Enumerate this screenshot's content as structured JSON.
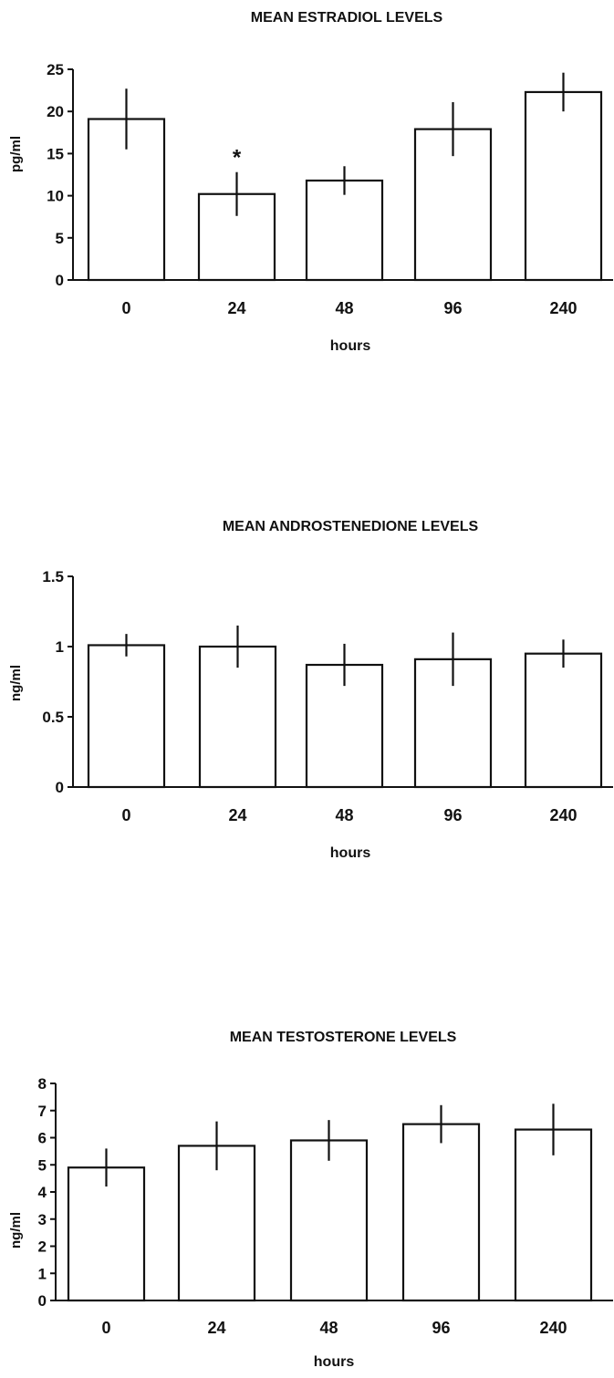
{
  "chart_data": [
    {
      "type": "bar",
      "title": "MEAN ESTRADIOL LEVELS",
      "xlabel": "hours",
      "ylabel": "pg/ml",
      "categories": [
        "0",
        "24",
        "48",
        "96",
        "240"
      ],
      "values": [
        19.1,
        10.2,
        11.8,
        17.9,
        22.3
      ],
      "errors": [
        3.6,
        2.6,
        1.7,
        3.2,
        2.3
      ],
      "annotations": [
        "",
        "*",
        "",
        "",
        ""
      ],
      "ylim": [
        0,
        25
      ],
      "yticks": [
        0,
        5,
        10,
        15,
        20,
        25
      ],
      "ytick_labels": [
        "0",
        "5",
        "10",
        "15",
        "20",
        "25"
      ]
    },
    {
      "type": "bar",
      "title": "MEAN ANDROSTENEDIONE LEVELS",
      "xlabel": "hours",
      "ylabel": "ng/ml",
      "categories": [
        "0",
        "24",
        "48",
        "96",
        "240"
      ],
      "values": [
        1.01,
        1.0,
        0.87,
        0.91,
        0.95
      ],
      "errors": [
        0.08,
        0.15,
        0.15,
        0.19,
        0.1
      ],
      "annotations": [
        "",
        "",
        "",
        "",
        ""
      ],
      "ylim": [
        0,
        1.5
      ],
      "yticks": [
        0,
        0.5,
        1,
        1.5
      ],
      "ytick_labels": [
        "0",
        "0.5",
        "1",
        "1.5"
      ]
    },
    {
      "type": "bar",
      "title": "MEAN TESTOSTERONE LEVELS",
      "xlabel": "hours",
      "ylabel": "ng/ml",
      "categories": [
        "0",
        "24",
        "48",
        "96",
        "240"
      ],
      "values": [
        4.9,
        5.7,
        5.9,
        6.5,
        6.3
      ],
      "errors": [
        0.7,
        0.9,
        0.75,
        0.7,
        0.95
      ],
      "annotations": [
        "",
        "",
        "",
        "",
        ""
      ],
      "ylim": [
        0,
        8
      ],
      "yticks": [
        0,
        1,
        2,
        3,
        4,
        5,
        6,
        7,
        8
      ],
      "ytick_labels": [
        "0",
        "1",
        "2",
        "3",
        "4",
        "5",
        "6",
        "7",
        "8"
      ]
    }
  ]
}
